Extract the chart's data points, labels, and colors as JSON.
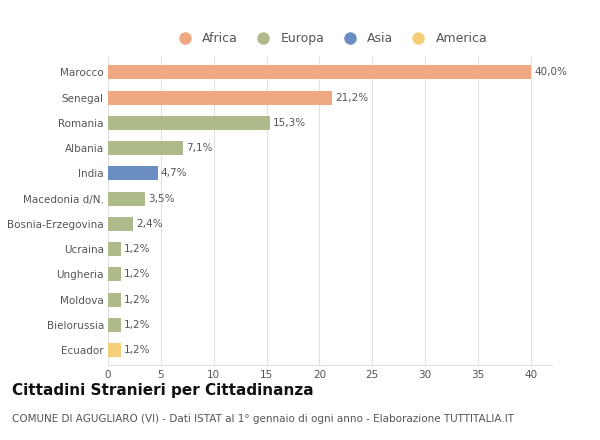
{
  "countries": [
    "Marocco",
    "Senegal",
    "Romania",
    "Albania",
    "India",
    "Macedonia d/N.",
    "Bosnia-Erzegovina",
    "Ucraina",
    "Ungheria",
    "Moldova",
    "Bielorussia",
    "Ecuador"
  ],
  "values": [
    40.0,
    21.2,
    15.3,
    7.1,
    4.7,
    3.5,
    2.4,
    1.2,
    1.2,
    1.2,
    1.2,
    1.2
  ],
  "labels": [
    "40,0%",
    "21,2%",
    "15,3%",
    "7,1%",
    "4,7%",
    "3,5%",
    "2,4%",
    "1,2%",
    "1,2%",
    "1,2%",
    "1,2%",
    "1,2%"
  ],
  "continents": [
    "Africa",
    "Africa",
    "Europa",
    "Europa",
    "Asia",
    "Europa",
    "Europa",
    "Europa",
    "Europa",
    "Europa",
    "Europa",
    "America"
  ],
  "colors": {
    "Africa": "#F0A882",
    "Europa": "#AEBA8A",
    "Asia": "#6B8EC2",
    "America": "#F5CE7A"
  },
  "legend_order": [
    "Africa",
    "Europa",
    "Asia",
    "America"
  ],
  "xlim": [
    0,
    42
  ],
  "xticks": [
    0,
    5,
    10,
    15,
    20,
    25,
    30,
    35,
    40
  ],
  "title": "Cittadini Stranieri per Cittadinanza",
  "subtitle": "COMUNE DI AGUGLIARO (VI) - Dati ISTAT al 1° gennaio di ogni anno - Elaborazione TUTTITALIA.IT",
  "background_color": "#ffffff",
  "grid_color": "#e0e0e0",
  "bar_height": 0.55,
  "title_fontsize": 11,
  "subtitle_fontsize": 7.5,
  "label_fontsize": 7.5,
  "tick_fontsize": 7.5,
  "legend_fontsize": 9
}
